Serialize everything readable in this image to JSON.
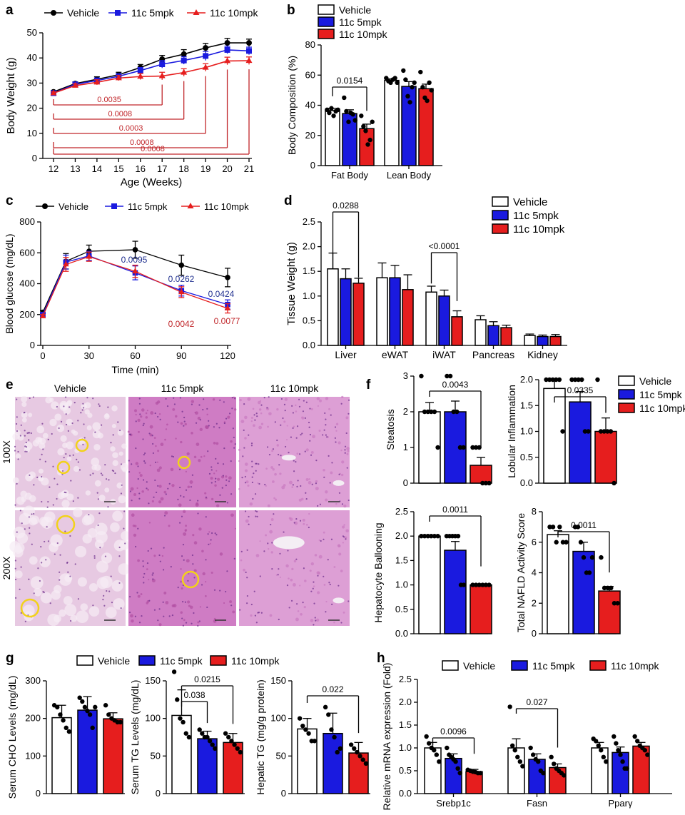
{
  "colors": {
    "vehicle": "#000000",
    "mpk5": "#1a1adf",
    "mpk10": "#e61e1e",
    "sigRed": "#c0262a",
    "sigBlue": "#1f2f8f",
    "he": "#d889c6",
    "ring": "#f2d21a"
  },
  "series_names": [
    "Vehicle",
    "11c 5mpk",
    "11c 10mpk"
  ],
  "chart_data": [
    {
      "panel": "a",
      "type": "line",
      "xlabel": "Age (Weeks)",
      "ylabel": "Body Weight (g)",
      "xlim": [
        12,
        21
      ],
      "ylim": [
        0,
        50
      ],
      "x": [
        12,
        13,
        14,
        15,
        16,
        17,
        18,
        19,
        20,
        21
      ],
      "yticks": [
        0,
        10,
        20,
        30,
        40,
        50
      ],
      "series": [
        {
          "name": "Vehicle",
          "values": [
            26.5,
            29.8,
            31.5,
            33.3,
            36.2,
            39.5,
            41.5,
            44,
            46,
            46
          ],
          "err": [
            0.5,
            0.7,
            1,
            1,
            1.2,
            1.5,
            1.8,
            1.8,
            1.8,
            1.5
          ]
        },
        {
          "name": "11c 5mpk",
          "values": [
            26,
            29.5,
            31,
            32.7,
            35,
            37.5,
            39,
            40.8,
            43.2,
            42.8
          ],
          "err": [
            0.5,
            0.7,
            1,
            1,
            1.2,
            1.5,
            1.5,
            1.8,
            1.5,
            1.5
          ]
        },
        {
          "name": "11c 10mpk",
          "values": [
            26,
            29,
            30.3,
            32,
            32.6,
            32.8,
            34.2,
            36.2,
            38.8,
            38.9
          ],
          "err": [
            0.5,
            0.7,
            1,
            1,
            1.2,
            1.5,
            1.5,
            1.5,
            1.5,
            1.5
          ]
        }
      ],
      "annotations": [
        {
          "x": 17,
          "text": "0.0035"
        },
        {
          "x": 18,
          "text": "0.0008"
        },
        {
          "x": 19,
          "text": "0.0003"
        },
        {
          "x": 20,
          "text": "0.0008"
        },
        {
          "x": 21,
          "text": "0.0008"
        }
      ]
    },
    {
      "panel": "b",
      "type": "bar",
      "ylabel": "Body Composition (%)",
      "categories": [
        "Fat Body",
        "Lean Body"
      ],
      "ylim": [
        0,
        80
      ],
      "yticks": [
        0,
        20,
        40,
        60,
        80
      ],
      "series": [
        {
          "name": "Vehicle",
          "values": [
            36.5,
            56.5
          ],
          "err": [
            1.5,
            1
          ],
          "points": [
            [
              37,
              35,
              38,
              33,
              36,
              37
            ],
            [
              58,
              56,
              55,
              57,
              58,
              55
            ]
          ]
        },
        {
          "name": "11c 5mpk",
          "values": [
            34.5,
            52.5
          ],
          "err": [
            2.5,
            3.2
          ],
          "points": [
            [
              45,
              36,
              29,
              35,
              34,
              30
            ],
            [
              63,
              57,
              46,
              42,
              52,
              55
            ]
          ]
        },
        {
          "name": "11c 10mpk",
          "values": [
            24.5,
            51
          ],
          "err": [
            3,
            3
          ],
          "points": [
            [
              33,
              26,
              23,
              14,
              17,
              29
            ],
            [
              62,
              52,
              45,
              43,
              55,
              50
            ]
          ]
        }
      ],
      "annotations": [
        {
          "text": "0.0154"
        }
      ]
    },
    {
      "panel": "c",
      "type": "line",
      "xlabel": "Time (min)",
      "ylabel": "Blood glucose (mg/dL)",
      "x": [
        0,
        15,
        30,
        60,
        90,
        120
      ],
      "xlim": [
        0,
        120
      ],
      "ylim": [
        0,
        800
      ],
      "yticks": [
        0,
        200,
        400,
        600,
        800
      ],
      "series": [
        {
          "name": "Vehicle",
          "values": [
            215,
            545,
            610,
            620,
            520,
            440
          ],
          "err": [
            10,
            50,
            40,
            55,
            65,
            60
          ]
        },
        {
          "name": "11c 5mpk",
          "values": [
            200,
            540,
            580,
            470,
            355,
            265
          ],
          "err": [
            10,
            45,
            30,
            45,
            35,
            30
          ]
        },
        {
          "name": "11c 10mpk",
          "values": [
            190,
            525,
            575,
            480,
            345,
            240
          ],
          "err": [
            10,
            45,
            30,
            40,
            35,
            30
          ]
        }
      ],
      "annotations": [
        {
          "x": 60,
          "text": "0.0095",
          "series": "blue"
        },
        {
          "x": 90,
          "text": "0.0262",
          "series": "blue"
        },
        {
          "x": 90,
          "text": "0.0042",
          "series": "red"
        },
        {
          "x": 120,
          "text": "0.0424",
          "series": "blue"
        },
        {
          "x": 120,
          "text": "0.0077",
          "series": "red"
        }
      ]
    },
    {
      "panel": "d",
      "type": "bar",
      "ylabel": "Tissue Weight (g)",
      "categories": [
        "Liver",
        "eWAT",
        "iWAT",
        "Pancreas",
        "Kidney"
      ],
      "ylim": [
        0,
        2.5
      ],
      "yticks": [
        "0.0",
        "0.5",
        "1.0",
        "1.5",
        "2.0",
        "2.5"
      ],
      "series": [
        {
          "name": "Vehicle",
          "values": [
            1.55,
            1.37,
            1.08,
            0.52,
            0.2
          ],
          "err": [
            0.32,
            0.3,
            0.12,
            0.08,
            0.03
          ]
        },
        {
          "name": "11c 5mpk",
          "values": [
            1.35,
            1.37,
            1.0,
            0.4,
            0.18
          ],
          "err": [
            0.2,
            0.25,
            0.12,
            0.08,
            0.03
          ]
        },
        {
          "name": "11c 10mpk",
          "values": [
            1.26,
            1.13,
            0.58,
            0.36,
            0.18
          ],
          "err": [
            0.1,
            0.3,
            0.12,
            0.05,
            0.04
          ]
        }
      ],
      "annotations": [
        {
          "text": "0.0288"
        },
        {
          "text": "<0.0001"
        }
      ]
    },
    {
      "panel": "f1",
      "type": "bar",
      "ylabel": "Steatosis",
      "ylim": [
        0,
        3
      ],
      "yticks": [
        0,
        1,
        2,
        3
      ],
      "series": [
        {
          "name": "Vehicle",
          "values": [
            2
          ],
          "err": [
            0.26
          ],
          "points": [
            [
              3,
              2,
              2,
              2,
              2,
              1
            ]
          ]
        },
        {
          "name": "11c 5mpk",
          "values": [
            2
          ],
          "err": [
            0.3
          ],
          "points": [
            [
              3,
              3,
              2,
              2,
              1,
              1
            ]
          ]
        },
        {
          "name": "11c 10mpk",
          "values": [
            0.5
          ],
          "err": [
            0.22
          ],
          "points": [
            [
              1,
              1,
              1,
              0,
              0,
              0
            ]
          ]
        }
      ],
      "annotations": [
        {
          "text": "0.0043"
        }
      ]
    },
    {
      "panel": "f2",
      "type": "bar",
      "ylabel": "Lobular Inflammation",
      "ylim": [
        0,
        2
      ],
      "yticks": [
        "0.0",
        "0.5",
        "1.0",
        "1.5",
        "2.0"
      ],
      "series": [
        {
          "name": "Vehicle",
          "values": [
            1.83
          ],
          "err": [
            0.17
          ],
          "points": [
            [
              2,
              2,
              2,
              2,
              2,
              1
            ]
          ]
        },
        {
          "name": "11c 5mpk",
          "values": [
            1.57
          ],
          "err": [
            0.2
          ],
          "points": [
            [
              2,
              2,
              2,
              2,
              1,
              1
            ]
          ]
        },
        {
          "name": "11c 10mpk",
          "values": [
            1
          ],
          "err": [
            0.26
          ],
          "points": [
            [
              2,
              1,
              1,
              1,
              1,
              0
            ]
          ]
        }
      ],
      "annotations": [
        {
          "text": "0.0335"
        }
      ]
    },
    {
      "panel": "f3",
      "type": "bar",
      "ylabel": "Hepatocyte Ballooning",
      "ylim": [
        0,
        2.5
      ],
      "yticks": [
        "0.0",
        "0.5",
        "1.0",
        "1.5",
        "2.0",
        "2.5"
      ],
      "series": [
        {
          "name": "Vehicle",
          "values": [
            2
          ],
          "err": [
            0
          ],
          "points": [
            [
              2,
              2,
              2,
              2,
              2,
              2
            ]
          ]
        },
        {
          "name": "11c 5mpk",
          "values": [
            1.71
          ],
          "err": [
            0.18
          ],
          "points": [
            [
              2,
              2,
              2,
              2,
              2,
              1,
              1
            ]
          ]
        },
        {
          "name": "11c 10mpk",
          "values": [
            1
          ],
          "err": [
            0
          ],
          "points": [
            [
              1,
              1,
              1,
              1,
              1,
              1
            ]
          ]
        }
      ],
      "annotations": [
        {
          "text": "0.0011"
        }
      ]
    },
    {
      "panel": "f4",
      "type": "bar",
      "ylabel": "Total NAFLD Activity Score",
      "ylim": [
        0,
        8
      ],
      "yticks": [
        0,
        2,
        4,
        6,
        8
      ],
      "series": [
        {
          "name": "Vehicle",
          "values": [
            6.5
          ],
          "err": [
            0.25
          ],
          "points": [
            [
              7,
              7,
              6,
              7,
              6,
              6
            ]
          ]
        },
        {
          "name": "11c 5mpk",
          "values": [
            5.4
          ],
          "err": [
            0.6
          ],
          "points": [
            [
              7,
              7,
              6,
              5,
              4,
              4,
              5
            ]
          ]
        },
        {
          "name": "11c 10mpk",
          "values": [
            2.8
          ],
          "err": [
            0.3
          ],
          "points": [
            [
              5,
              3,
              3,
              3,
              2,
              2
            ]
          ]
        }
      ],
      "annotations": [
        {
          "text": "0.0011"
        }
      ]
    },
    {
      "panel": "g1",
      "type": "bar",
      "ylabel": "Serum CHO Levels (mg/dL)",
      "ylim": [
        0,
        300
      ],
      "yticks": [
        0,
        100,
        200,
        300
      ],
      "series": [
        {
          "name": "Vehicle",
          "values": [
            202
          ],
          "err": [
            33
          ],
          "points": [
            [
              235,
              230,
              210,
              195,
              175,
              165
            ]
          ]
        },
        {
          "name": "11c 5mpk",
          "values": [
            222
          ],
          "err": [
            36
          ],
          "points": [
            [
              255,
              245,
              230,
              220,
              210,
              175,
              230
            ]
          ]
        },
        {
          "name": "11c 10mpk",
          "values": [
            199
          ],
          "err": [
            16
          ],
          "points": [
            [
              235,
              210,
              200,
              195,
              190,
              190
            ]
          ]
        }
      ]
    },
    {
      "panel": "g2",
      "type": "bar",
      "ylabel": "Serum TG Levels (mg/dL)",
      "ylim": [
        0,
        150
      ],
      "yticks": [
        0,
        50,
        100,
        150
      ],
      "series": [
        {
          "name": "Vehicle",
          "values": [
            104
          ],
          "err": [
            34
          ],
          "points": [
            [
              162,
              125,
              100,
              95,
              80,
              75
            ]
          ]
        },
        {
          "name": "11c 5mpk",
          "values": [
            73
          ],
          "err": [
            10
          ],
          "points": [
            [
              85,
              80,
              75,
              75,
              70,
              65,
              60
            ]
          ]
        },
        {
          "name": "11c 10mpk",
          "values": [
            68
          ],
          "err": [
            12
          ],
          "points": [
            [
              80,
              75,
              70,
              65,
              60,
              55
            ]
          ]
        }
      ],
      "annotations": [
        {
          "text": "0.038"
        },
        {
          "text": "0.0215"
        }
      ]
    },
    {
      "panel": "g3",
      "type": "bar",
      "ylabel": "Hepatic TG (mg/g protein)",
      "ylim": [
        0,
        150
      ],
      "yticks": [
        0,
        50,
        100,
        150
      ],
      "series": [
        {
          "name": "Vehicle",
          "values": [
            86
          ],
          "err": [
            14
          ],
          "points": [
            [
              100,
              90,
              85,
              80,
              70,
              70
            ]
          ]
        },
        {
          "name": "11c 5mpk",
          "values": [
            80
          ],
          "err": [
            27
          ],
          "points": [
            [
              115,
              105,
              85,
              75,
              55,
              60
            ]
          ]
        },
        {
          "name": "11c 10mpk",
          "values": [
            54
          ],
          "err": [
            14
          ],
          "points": [
            [
              65,
              60,
              55,
              50,
              45,
              40
            ]
          ]
        }
      ],
      "annotations": [
        {
          "text": "0.022"
        }
      ]
    },
    {
      "panel": "h",
      "type": "bar",
      "ylabel": "Relative mRNA expression (Fold)",
      "categories": [
        "Srebp1c",
        "Fasn",
        "Pparγ"
      ],
      "ylim": [
        0,
        2.5
      ],
      "yticks": [
        "0.0",
        "0.5",
        "1.0",
        "1.5",
        "2.0",
        "2.5"
      ],
      "series": [
        {
          "name": "Vehicle",
          "values": [
            1,
            1,
            1
          ],
          "err": [
            0.12,
            0.2,
            0.12
          ],
          "points": [
            [
              1.25,
              1.1,
              1.0,
              0.95,
              0.85,
              0.7
            ],
            [
              1.9,
              1.05,
              0.95,
              0.8,
              0.7,
              0.6
            ],
            [
              1.2,
              1.15,
              1.05,
              0.95,
              0.8,
              0.7
            ]
          ]
        },
        {
          "name": "11c 5mpk",
          "values": [
            0.77,
            0.75,
            0.9
          ],
          "err": [
            0.1,
            0.12,
            0.12
          ],
          "points": [
            [
              1.0,
              0.85,
              0.8,
              0.75,
              0.7,
              0.55,
              0.45
            ],
            [
              1.0,
              0.85,
              0.75,
              0.7,
              0.5,
              0.45
            ],
            [
              1.25,
              1.1,
              0.95,
              0.85,
              0.7,
              0.55,
              0.55
            ]
          ]
        },
        {
          "name": "11c 10mpk",
          "values": [
            0.48,
            0.57,
            1.04
          ],
          "err": [
            0.05,
            0.08,
            0.08
          ],
          "points": [
            [
              0.52,
              0.5,
              0.48,
              0.47,
              0.45,
              0.45
            ],
            [
              0.8,
              0.65,
              0.55,
              0.5,
              0.45,
              0.4
            ],
            [
              1.25,
              1.15,
              1.05,
              1.0,
              0.95,
              0.85
            ]
          ]
        }
      ],
      "annotations": [
        {
          "text": "0.0096"
        },
        {
          "text": "0.027"
        }
      ]
    }
  ],
  "panel_letters": {
    "a": "a",
    "b": "b",
    "c": "c",
    "d": "d",
    "e": "e",
    "f": "f",
    "g": "g",
    "h": "h"
  },
  "histology": {
    "columns": [
      "Vehicle",
      "11c 5mpk",
      "11c 10mpk"
    ],
    "rows": [
      "100X",
      "200X"
    ]
  }
}
